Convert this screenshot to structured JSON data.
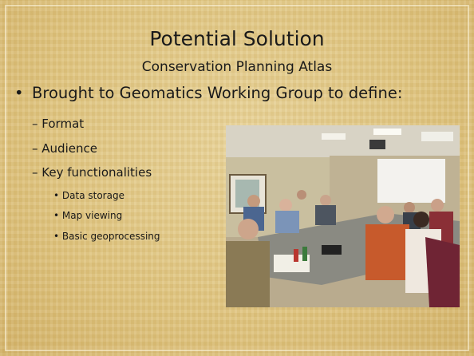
{
  "slide": {
    "title": "Potential Solution",
    "subtitle": "Conservation Planning Atlas",
    "bullets": [
      {
        "text": "Brought to Geomatics Working Group to define:",
        "items": [
          {
            "text": "Format"
          },
          {
            "text": "Audience"
          },
          {
            "text": "Key functionalities",
            "items": [
              "Data storage",
              "Map viewing",
              "Basic geoprocessing"
            ]
          }
        ]
      }
    ]
  }
}
